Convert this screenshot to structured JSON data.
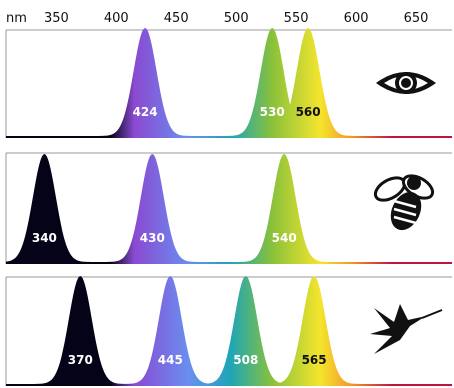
{
  "chart_data": {
    "type": "area",
    "x_unit_label": "nm",
    "x_ticks": [
      350,
      400,
      450,
      500,
      550,
      600,
      650
    ],
    "xlim": [
      308,
      680
    ],
    "panels": [
      {
        "organism_icon": "eye-icon",
        "peaks_nm": [
          424,
          530,
          560
        ],
        "peak_labels": [
          "424",
          "530",
          "560"
        ]
      },
      {
        "organism_icon": "bee-icon",
        "peaks_nm": [
          340,
          430,
          540
        ],
        "peak_labels": [
          "340",
          "430",
          "540"
        ]
      },
      {
        "organism_icon": "hummingbird-icon",
        "peaks_nm": [
          370,
          445,
          508,
          565
        ],
        "peak_labels": [
          "370",
          "445",
          "508",
          "565"
        ]
      }
    ],
    "spectrum_colors": {
      "ultraviolet": "#050318",
      "violet": "#8a4ad1",
      "blue": "#6a8ef0",
      "cyan": "#1ea5b8",
      "green": "#8ac13a",
      "yellow": "#f4e52d",
      "orange": "#f39b2c",
      "red": "#c0143c"
    }
  }
}
